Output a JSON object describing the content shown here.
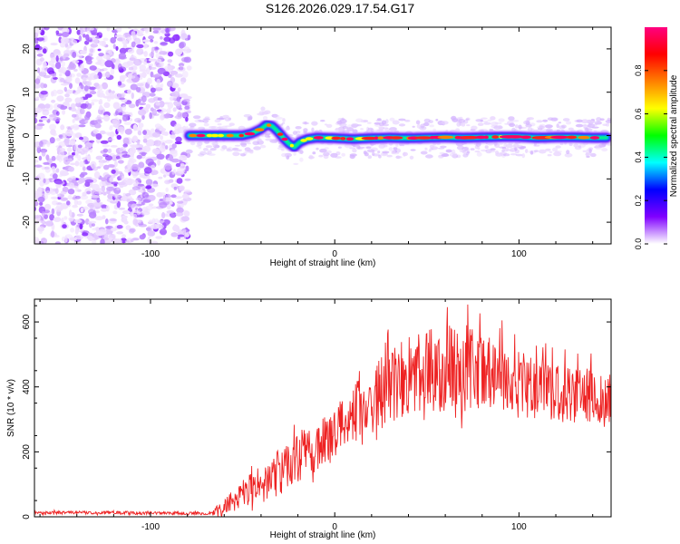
{
  "title": "S126.2026.029.17.54.G17",
  "chart_data": [
    {
      "type": "heatmap",
      "xlabel": "Height of straight line (km)",
      "ylabel": "Frequency (Hz)",
      "xlim": [
        -163,
        150
      ],
      "ylim": [
        -25,
        25
      ],
      "x_ticks": [
        -100,
        0,
        100
      ],
      "y_ticks": [
        -20,
        -10,
        0,
        10,
        20
      ],
      "noise_region_x": [
        -163,
        -79
      ],
      "signal_start_x": -79,
      "signal_track": {
        "x": [
          -79,
          -70,
          -60,
          -50,
          -45,
          -40,
          -37,
          -34,
          -31,
          -28,
          -25,
          -22,
          -19,
          -15,
          -10,
          0,
          10,
          20,
          30,
          40,
          50,
          60,
          70,
          80,
          90,
          100,
          110,
          120,
          130,
          140,
          148
        ],
        "freq": [
          0,
          0,
          0,
          0,
          0.5,
          1.5,
          2.5,
          2.2,
          1,
          -0.5,
          -1.8,
          -2.7,
          -1.5,
          -0.8,
          -0.5,
          -0.6,
          -0.8,
          -0.6,
          -0.5,
          -0.6,
          -0.5,
          -0.4,
          -0.5,
          -0.4,
          -0.3,
          -0.3,
          -0.5,
          -0.4,
          -0.4,
          -0.5,
          -0.5
        ]
      },
      "colorbar": {
        "label": "Normalized spectral amplitude",
        "range": [
          0.0,
          1.0
        ],
        "ticks": [
          "0.0",
          "0.2",
          "0.4",
          "0.6",
          "0.8"
        ],
        "colors": [
          "#ffffff",
          "#8000ff",
          "#0000ff",
          "#00ffff",
          "#00ff00",
          "#ffff00",
          "#ff8000",
          "#ff0000",
          "#ff0080"
        ]
      }
    },
    {
      "type": "line",
      "xlabel": "Height of straight line (km)",
      "ylabel": "SNR (10 * v/v)",
      "xlim": [
        -163,
        150
      ],
      "ylim": [
        0,
        670
      ],
      "x_ticks": [
        -100,
        0,
        100
      ],
      "y_ticks": [
        0,
        200,
        400,
        600
      ],
      "color": "#ee2222",
      "envelope": {
        "x": [
          -163,
          -120,
          -80,
          -68,
          -60,
          -50,
          -40,
          -30,
          -20,
          -10,
          0,
          10,
          20,
          30,
          40,
          50,
          60,
          70,
          80,
          90,
          100,
          110,
          120,
          130,
          140,
          150
        ],
        "mean": [
          12,
          12,
          10,
          10,
          25,
          70,
          100,
          130,
          170,
          210,
          250,
          300,
          350,
          390,
          420,
          440,
          450,
          445,
          435,
          420,
          400,
          385,
          375,
          365,
          360,
          355
        ],
        "spread": [
          5,
          5,
          5,
          6,
          25,
          45,
          60,
          70,
          75,
          80,
          85,
          95,
          110,
          120,
          120,
          130,
          140,
          130,
          120,
          110,
          100,
          95,
          90,
          90,
          90,
          90
        ]
      }
    }
  ]
}
